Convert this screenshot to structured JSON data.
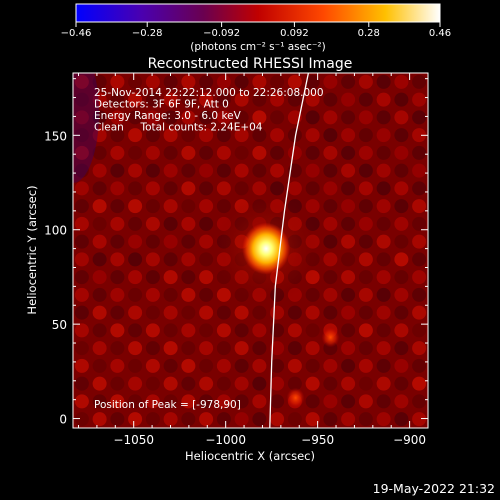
{
  "chart_data": {
    "type": "heatmap",
    "title": "Reconstructed RHESSI Image",
    "xlabel": "Heliocentric X (arcsec)",
    "ylabel": "Heliocentric Y (arcsec)",
    "xlim": [
      -1083,
      -890
    ],
    "ylim": [
      -5,
      183
    ],
    "xticks": [
      -1050,
      -1000,
      -950,
      -900
    ],
    "yticks": [
      0,
      50,
      100,
      150
    ],
    "colorbar": {
      "min": -0.46,
      "max": 0.46,
      "ticks": [
        -0.46,
        -0.28,
        -0.092,
        0.092,
        0.28,
        0.46
      ],
      "tick_labels": [
        "−0.46",
        "−0.28",
        "−0.092",
        "0.092",
        "0.28",
        "0.46"
      ],
      "label": "(photons cm⁻² s⁻¹ asec⁻²)",
      "colormap": "blue-purple-red-orange-yellow-white"
    },
    "annotations": [
      "25-Nov-2014 22:22:12.000 to 22:26:08.000",
      "Detectors: 3F 6F 9F, Att 0",
      "Energy Range: 3.0 - 6.0 keV",
      "Clean     Total counts: 2.24E+04"
    ],
    "peak_label": "Position of Peak = [-978,90]",
    "peak": {
      "x": -978,
      "y": 90
    },
    "secondary_sources": [
      {
        "x": -943,
        "y": 43
      },
      {
        "x": -962,
        "y": 11
      }
    ],
    "limb_curve": [
      [
        -955,
        183
      ],
      [
        -962,
        150
      ],
      [
        -968,
        110
      ],
      [
        -973,
        70
      ],
      [
        -975,
        30
      ],
      [
        -976,
        -5
      ]
    ],
    "timestamp": "19-May-2022 21:32"
  }
}
